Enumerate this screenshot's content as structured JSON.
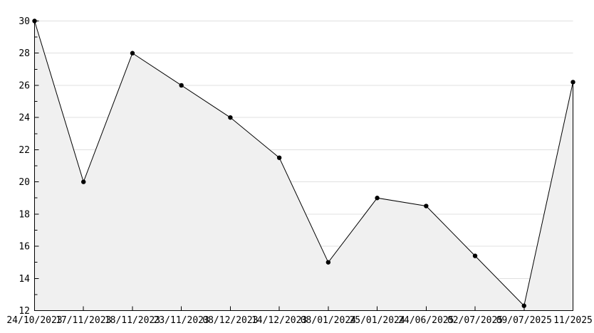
{
  "chart_data": {
    "type": "area",
    "title": "",
    "xlabel": "",
    "ylabel": "",
    "x_categories": [
      "24/10/2023",
      "17/11/2023",
      "18/11/2023",
      "23/11/2023",
      "08/12/2023",
      "14/12/2023",
      "08/01/2024",
      "25/01/2024",
      "24/06/2025",
      "02/07/2025",
      "09/07/2025",
      "11/2025"
    ],
    "values": [
      30,
      20,
      28,
      26,
      24,
      21.5,
      15,
      19,
      18.5,
      15.4,
      12.3,
      26.2
    ],
    "ylim": [
      12,
      30
    ],
    "y_major_ticks": [
      12,
      14,
      16,
      18,
      20,
      22,
      24,
      26,
      28,
      30
    ],
    "y_minor_step": 1,
    "grid": "horizontal-major-only",
    "legend": "none",
    "marker": "filled-dot",
    "colors": {
      "line": "#000000",
      "marker": "#000000",
      "fill": "#f0f0f0",
      "grid": "#e0e0e0",
      "axis": "#000000",
      "background": "#ffffff",
      "text": "#000000"
    }
  }
}
